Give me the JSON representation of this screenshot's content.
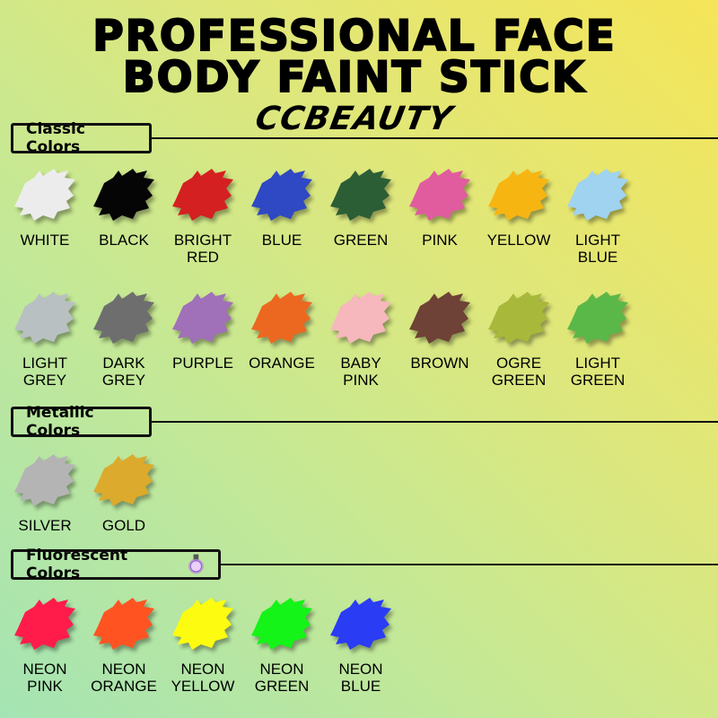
{
  "title": {
    "line1": "PROFESSIONAL FACE",
    "line2": "BODY FAINT STICK",
    "brand": "CCBEAUTY"
  },
  "sections": {
    "classic": {
      "label": "Classic Colors",
      "colors": [
        {
          "name": "WHITE",
          "hex": "#ececec"
        },
        {
          "name": "BLACK",
          "hex": "#050505"
        },
        {
          "name": "BRIGHT\nRED",
          "hex": "#d42020"
        },
        {
          "name": "BLUE",
          "hex": "#2f48c4"
        },
        {
          "name": "GREEN",
          "hex": "#2c5e36"
        },
        {
          "name": "PINK",
          "hex": "#e05c9e"
        },
        {
          "name": "YELLOW",
          "hex": "#f7b512"
        },
        {
          "name": "LIGHT\nBLUE",
          "hex": "#9fd3f0"
        },
        {
          "name": "LIGHT\nGREY",
          "hex": "#b8c0c2"
        },
        {
          "name": "DARK\nGREY",
          "hex": "#6e6e6e"
        },
        {
          "name": "PURPLE",
          "hex": "#a070b8"
        },
        {
          "name": "ORANGE",
          "hex": "#ec6820"
        },
        {
          "name": "BABY\nPINK",
          "hex": "#f6b8bc"
        },
        {
          "name": "BROWN",
          "hex": "#6e4236"
        },
        {
          "name": "OGRE\nGREEN",
          "hex": "#a8b83a"
        },
        {
          "name": "LIGHT\nGREEN",
          "hex": "#5ab848"
        }
      ]
    },
    "metallic": {
      "label": "Metallic Colors",
      "colors": [
        {
          "name": "SILVER",
          "hex": "#b4b4b4"
        },
        {
          "name": "GOLD",
          "hex": "#dcaa2c"
        }
      ]
    },
    "fluorescent": {
      "label": "Fluorescent Colors",
      "icon": "uv-bulb-icon",
      "colors": [
        {
          "name": "NEON\nPINK",
          "hex": "#ff1c4a"
        },
        {
          "name": "NEON\nORANGE",
          "hex": "#ff5422"
        },
        {
          "name": "NEON\nYELLOW",
          "hex": "#fdfc10"
        },
        {
          "name": "NEON\nGREEN",
          "hex": "#14f418"
        },
        {
          "name": "NEON\nBLUE",
          "hex": "#2a3cf4"
        }
      ]
    }
  }
}
